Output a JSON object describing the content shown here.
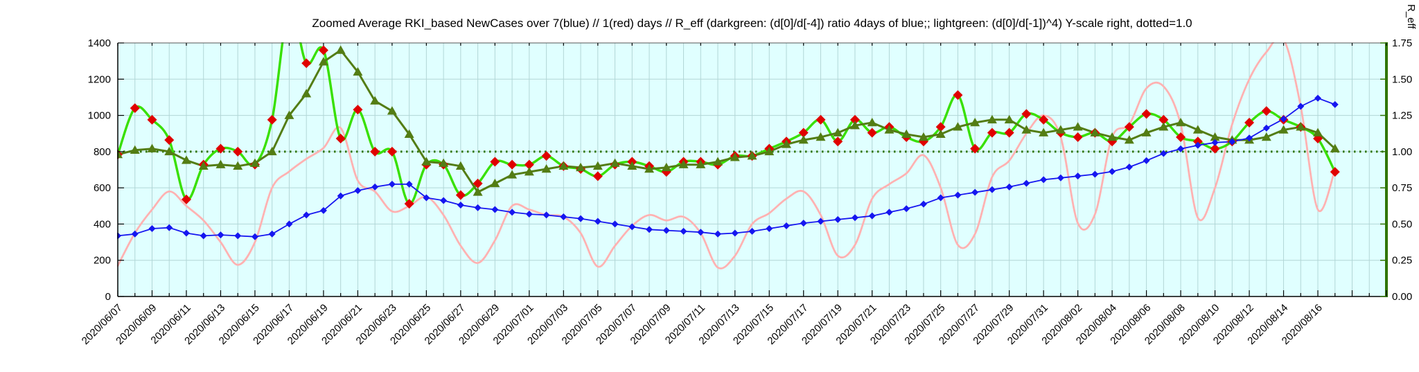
{
  "page": {
    "title": "Zoomed Average RKI_based NewCases over 7(blue) // 1(red) days // R_eff (darkgreen: (d[0]/d[-4]) ratio 4days of blue;; lightgreen: (d[0]/d[-1])^4) Y-scale right, dotted=1.0",
    "right_axis_label": "R_eff"
  },
  "chart_data": {
    "type": "line",
    "title": "Zoomed Average RKI_based NewCases over 7(blue) // 1(red) days // R_eff (darkgreen: (d[0]/d[-4]) ratio 4days of blue;; lightgreen: (d[0]/d[-1])^4) Y-scale right, dotted=1.0",
    "plot_bg": "#e0ffff",
    "grid_on": true,
    "grid_color": "#b2d6d6",
    "x_tick_label_every": 2,
    "dates": [
      "2020/06/07",
      "2020/06/08",
      "2020/06/09",
      "2020/06/10",
      "2020/06/11",
      "2020/06/12",
      "2020/06/13",
      "2020/06/14",
      "2020/06/15",
      "2020/06/16",
      "2020/06/17",
      "2020/06/18",
      "2020/06/19",
      "2020/06/20",
      "2020/06/21",
      "2020/06/22",
      "2020/06/23",
      "2020/06/24",
      "2020/06/25",
      "2020/06/26",
      "2020/06/27",
      "2020/06/28",
      "2020/06/29",
      "2020/06/30",
      "2020/07/01",
      "2020/07/02",
      "2020/07/03",
      "2020/07/04",
      "2020/07/05",
      "2020/07/06",
      "2020/07/07",
      "2020/07/08",
      "2020/07/09",
      "2020/07/10",
      "2020/07/11",
      "2020/07/12",
      "2020/07/13",
      "2020/07/14",
      "2020/07/15",
      "2020/07/16",
      "2020/07/17",
      "2020/07/18",
      "2020/07/19",
      "2020/07/20",
      "2020/07/21",
      "2020/07/22",
      "2020/07/23",
      "2020/07/24",
      "2020/07/25",
      "2020/07/26",
      "2020/07/27",
      "2020/07/28",
      "2020/07/29",
      "2020/07/30",
      "2020/07/31",
      "2020/08/01",
      "2020/08/02",
      "2020/08/03",
      "2020/08/04",
      "2020/08/05",
      "2020/08/06",
      "2020/08/07",
      "2020/08/08",
      "2020/08/09",
      "2020/08/10",
      "2020/08/11",
      "2020/08/12",
      "2020/08/13",
      "2020/08/14",
      "2020/08/15",
      "2020/08/16",
      "2020/08/17"
    ],
    "left_axis": {
      "min": 0,
      "max": 1400,
      "tick_step": 200,
      "tick_labels": [
        "0",
        "200",
        "400",
        "600",
        "800",
        "1000",
        "1200",
        "1400"
      ]
    },
    "right_axis": {
      "label": "R_eff",
      "min": 0,
      "max": 1.75,
      "tick_step": 0.25,
      "tick_labels": [
        "0.00",
        "0.25",
        "0.50",
        "0.75",
        "1.00",
        "1.25",
        "1.50",
        "1.75"
      ],
      "axis_color": "#2f7500"
    },
    "reference_line": {
      "axis": "right",
      "value": 1.0,
      "style": "dotted",
      "color": "#2f7500"
    },
    "series": [
      {
        "name": "newcases-1day-pink",
        "axis": "left",
        "color": "#ffb2b2",
        "marker": "none",
        "marker_color": "#ffb2b2",
        "marker_size": 0,
        "line_width": 2.8,
        "smooth": true,
        "values": [
          170,
          350,
          480,
          580,
          500,
          420,
          300,
          175,
          300,
          600,
          690,
          760,
          820,
          930,
          640,
          580,
          470,
          500,
          550,
          450,
          280,
          185,
          310,
          500,
          480,
          450,
          440,
          350,
          165,
          280,
          390,
          450,
          420,
          440,
          350,
          160,
          225,
          400,
          460,
          540,
          580,
          450,
          225,
          285,
          540,
          620,
          680,
          780,
          600,
          285,
          345,
          660,
          750,
          900,
          1000,
          880,
          405,
          455,
          880,
          950,
          1150,
          1160,
          950,
          435,
          600,
          950,
          1200,
          1350,
          1420,
          1050,
          480,
          700
        ]
      },
      {
        "name": "reff-1day-lightgreen",
        "axis": "right",
        "color": "#38e000",
        "marker": "diamond",
        "marker_color": "#e00000",
        "marker_size": 7,
        "line_width": 3.4,
        "smooth": true,
        "values": [
          0.98,
          1.3,
          1.22,
          1.08,
          0.67,
          0.91,
          1.02,
          1.0,
          0.91,
          1.22,
          2.0,
          1.61,
          1.7,
          1.09,
          1.29,
          1.0,
          1.0,
          0.64,
          0.91,
          0.91,
          0.7,
          0.78,
          0.93,
          0.91,
          0.91,
          0.97,
          0.9,
          0.88,
          0.83,
          0.91,
          0.93,
          0.9,
          0.86,
          0.93,
          0.93,
          0.91,
          0.97,
          0.97,
          1.02,
          1.07,
          1.13,
          1.22,
          1.07,
          1.22,
          1.13,
          1.17,
          1.1,
          1.07,
          1.17,
          1.39,
          1.02,
          1.13,
          1.13,
          1.26,
          1.22,
          1.13,
          1.1,
          1.13,
          1.07,
          1.17,
          1.26,
          1.22,
          1.1,
          1.07,
          1.02,
          1.07,
          1.2,
          1.28,
          1.22,
          1.17,
          1.09,
          0.86
        ]
      },
      {
        "name": "reff-4day-darkgreen",
        "axis": "right",
        "color": "#537d14",
        "marker": "triangle",
        "marker_color": "#537d14",
        "marker_size": 7,
        "line_width": 3.0,
        "smooth": false,
        "values": [
          0.98,
          1.01,
          1.02,
          1.0,
          0.94,
          0.9,
          0.91,
          0.9,
          0.92,
          1.0,
          1.25,
          1.4,
          1.62,
          1.7,
          1.55,
          1.35,
          1.28,
          1.12,
          0.93,
          0.92,
          0.9,
          0.72,
          0.78,
          0.84,
          0.86,
          0.88,
          0.9,
          0.89,
          0.9,
          0.92,
          0.9,
          0.88,
          0.89,
          0.91,
          0.91,
          0.93,
          0.96,
          0.97,
          1.0,
          1.05,
          1.08,
          1.1,
          1.13,
          1.18,
          1.2,
          1.15,
          1.12,
          1.1,
          1.12,
          1.17,
          1.2,
          1.22,
          1.22,
          1.15,
          1.13,
          1.15,
          1.17,
          1.13,
          1.1,
          1.08,
          1.13,
          1.17,
          1.2,
          1.15,
          1.1,
          1.08,
          1.08,
          1.1,
          1.15,
          1.17,
          1.13,
          1.02
        ]
      },
      {
        "name": "newcases-7day-avg-blue",
        "axis": "left",
        "color": "#1616f0",
        "marker": "diamond",
        "marker_color": "#1616f0",
        "marker_size": 5,
        "line_width": 1.8,
        "smooth": false,
        "values": [
          335,
          345,
          375,
          380,
          350,
          335,
          340,
          335,
          330,
          345,
          400,
          450,
          475,
          555,
          585,
          605,
          620,
          620,
          545,
          530,
          505,
          490,
          480,
          465,
          455,
          450,
          440,
          430,
          415,
          400,
          385,
          370,
          365,
          360,
          355,
          345,
          350,
          360,
          375,
          390,
          405,
          415,
          425,
          435,
          445,
          465,
          485,
          510,
          545,
          560,
          575,
          590,
          605,
          625,
          645,
          655,
          665,
          675,
          690,
          715,
          750,
          790,
          815,
          835,
          850,
          855,
          875,
          930,
          980,
          1050,
          1095,
          1060
        ]
      }
    ]
  }
}
